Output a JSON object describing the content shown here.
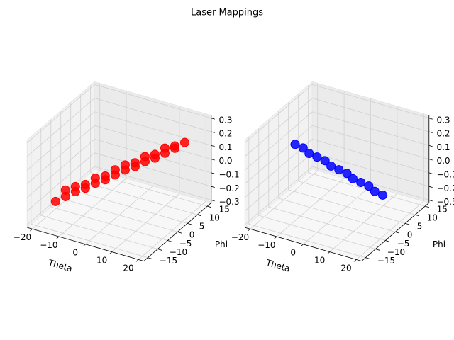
{
  "title": "Laser Mappings",
  "chart_data": [
    {
      "type": "scatter3d",
      "xlabel": "Theta",
      "ylabel": "Phi",
      "color": "#ff0000",
      "x": [
        -18,
        -18,
        -15,
        -15,
        -12,
        -12,
        -9,
        -9,
        -6,
        -6,
        -3,
        -3,
        0,
        0,
        3,
        3,
        6,
        6,
        9,
        9,
        12,
        12,
        15,
        15,
        18,
        18
      ],
      "y": [
        -8,
        -3,
        -7,
        -2,
        -6,
        -1,
        -5,
        0,
        -4,
        1,
        -3,
        2,
        -2,
        3,
        -1,
        4,
        0,
        5,
        1,
        6,
        2,
        7,
        3,
        8,
        4,
        9
      ],
      "z": [
        -0.22,
        -0.2,
        -0.18,
        -0.17,
        -0.14,
        -0.15,
        -0.11,
        -0.1,
        -0.07,
        -0.08,
        -0.04,
        -0.03,
        0,
        0.01,
        0.04,
        0.03,
        0.07,
        0.08,
        0.11,
        0.1,
        0.14,
        0.15,
        0.18,
        0.17,
        0.22,
        0.2
      ],
      "xlim": [
        -22,
        22
      ],
      "ylim": [
        -17,
        17
      ],
      "zlim": [
        -0.32,
        0.32
      ],
      "xticks": [
        {
          "value": -20,
          "label": "−20"
        },
        {
          "value": -10,
          "label": "−10"
        },
        0,
        10,
        20
      ],
      "yticks": [
        {
          "value": -15,
          "label": "−15"
        },
        {
          "value": -10,
          "label": "−10"
        },
        {
          "value": -5,
          "label": "−5"
        },
        0,
        5,
        10,
        15
      ],
      "zticks": [
        {
          "value": -0.3,
          "label": "−0.3"
        },
        {
          "value": -0.2,
          "label": "−0.2"
        },
        {
          "value": -0.1,
          "label": "−0.1"
        },
        {
          "value": 0,
          "label": "0.0"
        },
        0.1,
        0.2,
        0.3
      ]
    },
    {
      "type": "scatter3d",
      "xlabel": "Theta",
      "ylabel": "Phi",
      "color": "#0000ff",
      "x": [
        -18,
        -15,
        -12,
        -9,
        -6,
        -3,
        0,
        3,
        6,
        9,
        12,
        15,
        18
      ],
      "y": [
        3,
        3,
        2,
        2,
        2,
        1,
        1,
        1,
        0,
        0,
        0,
        -1,
        -1
      ],
      "z": [
        0.06,
        0.05,
        0.04,
        0.03,
        0.02,
        0.01,
        0,
        -0.01,
        -0.02,
        -0.03,
        -0.04,
        -0.05,
        -0.06
      ],
      "xlim": [
        -22,
        22
      ],
      "ylim": [
        -17,
        17
      ],
      "zlim": [
        -0.32,
        0.32
      ],
      "xticks": [
        {
          "value": -20,
          "label": "−20"
        },
        {
          "value": -10,
          "label": "−10"
        },
        0,
        10,
        20
      ],
      "yticks": [
        {
          "value": -15,
          "label": "−15"
        },
        {
          "value": -10,
          "label": "−10"
        },
        {
          "value": -5,
          "label": "−5"
        },
        0,
        5,
        10,
        15
      ],
      "zticks": [
        {
          "value": -0.3,
          "label": "−0.3"
        },
        {
          "value": -0.2,
          "label": "−0.2"
        },
        {
          "value": -0.1,
          "label": "−0.1"
        },
        {
          "value": 0,
          "label": "0.0"
        },
        0.1,
        0.2,
        0.3
      ]
    }
  ]
}
